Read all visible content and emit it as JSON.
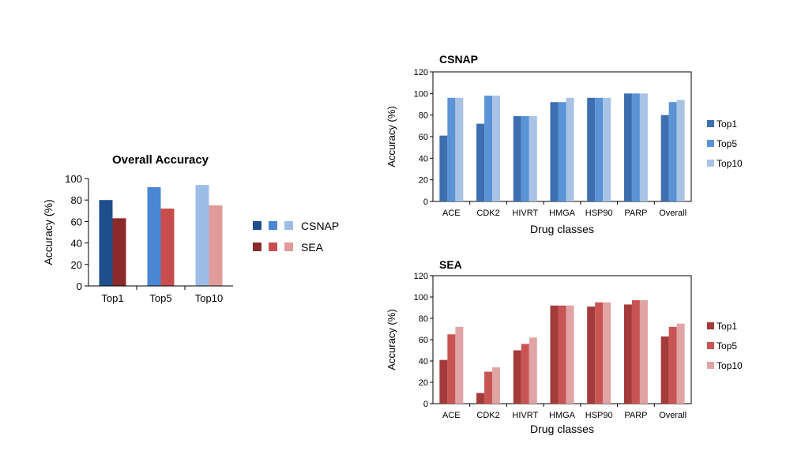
{
  "chart_data": [
    {
      "type": "bar",
      "title": "Overall Accuracy",
      "ylabel": "Accuracy (%)",
      "xlabel": "",
      "categories": [
        "Top1",
        "Top5",
        "Top10"
      ],
      "ylim": [
        0,
        100
      ],
      "yticks": [
        0,
        20,
        40,
        60,
        80,
        100
      ],
      "grid": false,
      "legend_position": "right",
      "groups": [
        {
          "name": "CSNAP",
          "values": [
            80,
            92,
            94
          ],
          "colors": [
            "#1f4e8c",
            "#4a86d4",
            "#9dbde6"
          ]
        },
        {
          "name": "SEA",
          "values": [
            63,
            72,
            75
          ],
          "colors": [
            "#8b2a2a",
            "#c84e4e",
            "#e09a9a"
          ]
        }
      ]
    },
    {
      "type": "bar",
      "title": "CSNAP",
      "ylabel": "Accuracy (%)",
      "xlabel": "Drug classes",
      "categories": [
        "ACE",
        "CDK2",
        "HIVRT",
        "HMGA",
        "HSP90",
        "PARP",
        "Overall"
      ],
      "ylim": [
        0,
        120
      ],
      "yticks": [
        0,
        20,
        40,
        60,
        80,
        100,
        120
      ],
      "grid": false,
      "legend_position": "right",
      "series": [
        {
          "name": "Top1",
          "color": "#3d6fb0",
          "values": [
            61,
            72,
            79,
            92,
            96,
            100,
            80
          ]
        },
        {
          "name": "Top5",
          "color": "#5a93d6",
          "values": [
            96,
            98,
            79,
            92,
            96,
            100,
            92
          ]
        },
        {
          "name": "Top10",
          "color": "#a9c3e6",
          "values": [
            96,
            98,
            79,
            96,
            96,
            100,
            94
          ]
        }
      ]
    },
    {
      "type": "bar",
      "title": "SEA",
      "ylabel": "Accuracy (%)",
      "xlabel": "Drug classes",
      "categories": [
        "ACE",
        "CDK2",
        "HIVRT",
        "HMGA",
        "HSP90",
        "PARP",
        "Overall"
      ],
      "ylim": [
        0,
        120
      ],
      "yticks": [
        0,
        20,
        40,
        60,
        80,
        100,
        120
      ],
      "grid": false,
      "legend_position": "right",
      "series": [
        {
          "name": "Top1",
          "color": "#a33b3b",
          "values": [
            41,
            10,
            50,
            92,
            91,
            93,
            63
          ]
        },
        {
          "name": "Top5",
          "color": "#c85454",
          "values": [
            65,
            30,
            56,
            92,
            95,
            97,
            72
          ]
        },
        {
          "name": "Top10",
          "color": "#e0a4a4",
          "values": [
            72,
            34,
            62,
            92,
            95,
            97,
            75
          ]
        }
      ]
    }
  ]
}
